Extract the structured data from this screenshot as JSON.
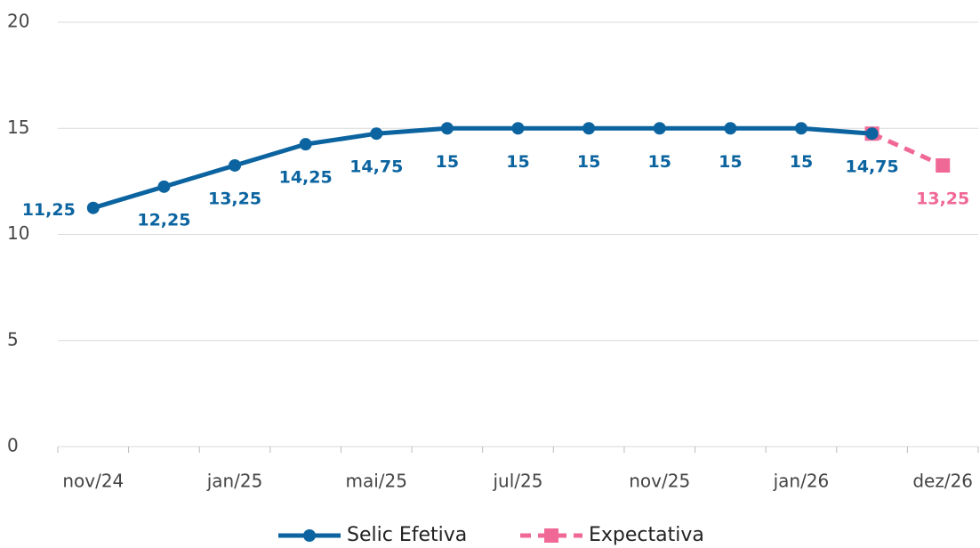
{
  "chart_data": {
    "type": "line",
    "categories": [
      "nov/24",
      null,
      "jan/25",
      null,
      "mai/25",
      null,
      "jul/25",
      null,
      "nov/25",
      null,
      "jan/26",
      null,
      "dez/26"
    ],
    "series": [
      {
        "name": "Selic Efetiva",
        "color": "#0b64a0",
        "marker": "circle",
        "dash": false,
        "values": [
          11.25,
          12.25,
          13.25,
          14.25,
          14.75,
          15,
          15,
          15,
          15,
          15,
          15,
          14.75,
          null
        ],
        "value_labels": [
          "11,25",
          "12,25",
          "13,25",
          "14,25",
          "14,75",
          "15",
          "15",
          "15",
          "15",
          "15",
          "15",
          "14,75",
          null
        ]
      },
      {
        "name": "Expectativa",
        "color": "#f06896",
        "marker": "square",
        "dash": true,
        "values": [
          null,
          null,
          null,
          null,
          null,
          null,
          null,
          null,
          null,
          null,
          null,
          14.75,
          13.25
        ],
        "value_labels": [
          null,
          null,
          null,
          null,
          null,
          null,
          null,
          null,
          null,
          null,
          null,
          null,
          "13,25"
        ]
      }
    ],
    "ylim": [
      0,
      20
    ],
    "yticks": [
      0,
      5,
      10,
      15,
      20
    ],
    "grid": true,
    "legend": "bottom"
  }
}
